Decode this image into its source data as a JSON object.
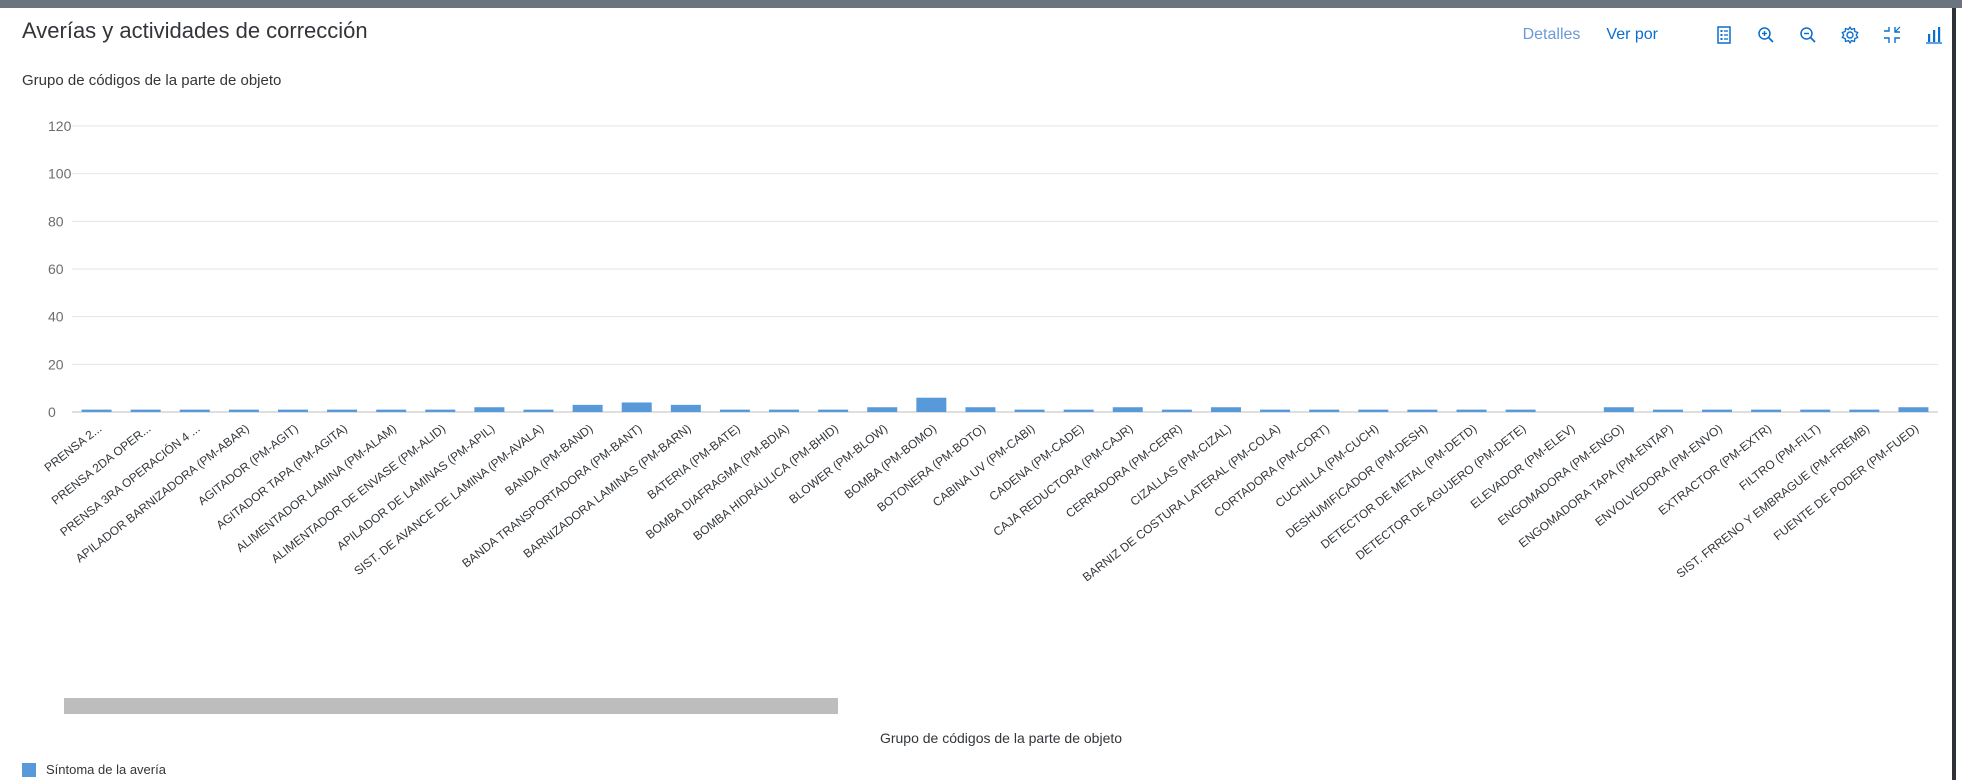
{
  "header": {
    "title": "Averías y actividades de corrección",
    "details_label": "Detalles",
    "view_by_label": "Ver por",
    "icons": [
      "legend-icon",
      "zoom-in-icon",
      "zoom-out-icon",
      "settings-icon",
      "fullscreen-exit-icon",
      "bar-chart-icon"
    ]
  },
  "colors": {
    "bar": "#5899da",
    "grid": "#e5e5e5",
    "axis": "#bfbfbf",
    "link": "#0a6ed1"
  },
  "chart_data": {
    "type": "bar",
    "title": "Grupo de códigos de la parte de objeto",
    "xlabel": "Grupo de códigos de la parte de objeto",
    "ylabel": "",
    "ylim": [
      0,
      120
    ],
    "yticks": [
      0,
      20,
      40,
      60,
      80,
      100,
      120
    ],
    "grid": true,
    "legend_position": "bottom-left",
    "categories": [
      "PRENSA 2...",
      "PRENSA 2DA OPER...",
      "PRENSA 3RA OPERACIÓN 4 ...",
      "APILADOR BARNIZADORA (PM-ABAR)",
      "AGITADOR (PM-AGIT)",
      "AGITADOR TAPA (PM-AGITA)",
      "ALIMENTADOR LAMINA (PM-ALAM)",
      "ALIMENTADOR DE ENVASE (PM-ALID)",
      "APILADOR DE LAMINAS (PM-APIL)",
      "SIST. DE AVANCE DE LAMINA (PM-AVALA)",
      "BANDA (PM-BAND)",
      "BANDA TRANSPORTADORA (PM-BANT)",
      "BARNIZADORA LAMINAS (PM-BARN)",
      "BATERIA (PM-BATE)",
      "BOMBA DIAFRAGMA (PM-BDIA)",
      "BOMBA HIDRÁULICA (PM-BHID)",
      "BLOWER (PM-BLOW)",
      "BOMBA (PM-BOMO)",
      "BOTONERA (PM-BOTO)",
      "CABINA UV (PM-CABI)",
      "CADENA (PM-CADE)",
      "CAJA REDUCTORA (PM-CAJR)",
      "CERRADORA (PM-CERR)",
      "CIZALLAS (PM-CIZAL)",
      "BARNIZ DE COSTURA LATERAL (PM-COLA)",
      "CORTADORA (PM-CORT)",
      "CUCHILLA (PM-CUCH)",
      "DESHUMIFICADOR (PM-DESH)",
      "DETECTOR DE METAL (PM-DETD)",
      "DETECTOR DE AGUJERO (PM-DETE)",
      "ELEVADOR (PM-ELEV)",
      "ENGOMADORA (PM-ENGO)",
      "ENGOMADORA TAPA (PM-ENTAP)",
      "ENVOLVEDORA (PM-ENVO)",
      "EXTRACTOR (PM-EXTR)",
      "FILTRO (PM-FILT)",
      "SIST. FRRENO Y EMBRAGUE (PM-FREMB)",
      "FUENTE DE PODER (PM-FUED)"
    ],
    "series": [
      {
        "name": "Síntoma de la avería",
        "values": [
          1,
          1,
          1,
          1,
          1,
          1,
          1,
          1,
          2,
          1,
          3,
          4,
          3,
          1,
          1,
          1,
          2,
          6,
          2,
          1,
          1,
          2,
          1,
          2,
          1,
          1,
          1,
          1,
          1,
          1,
          0,
          2,
          1,
          1,
          1,
          1,
          1,
          2
        ]
      }
    ]
  }
}
